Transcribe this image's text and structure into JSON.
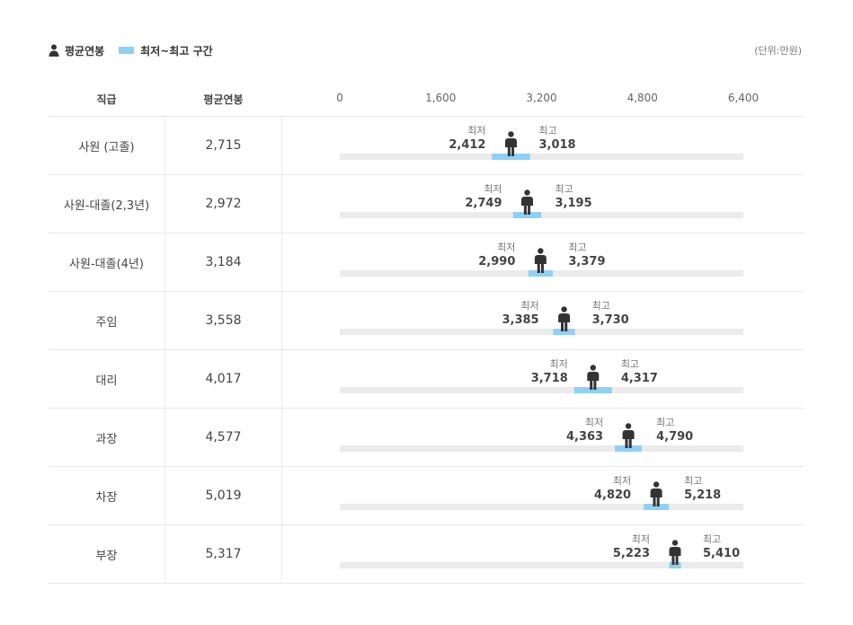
{
  "legend": {
    "avg_label": "평균연봉",
    "range_label": "최저~최고 구간",
    "avg_icon": "person-icon",
    "range_color": "#8fd0f7"
  },
  "unit": "(단위:만원)",
  "columns": {
    "position": "직급",
    "average": "평균연봉"
  },
  "labels": {
    "min": "최저",
    "max": "최고"
  },
  "chart_data": {
    "type": "bar",
    "axis": {
      "min": 0,
      "max": 6400,
      "ticks": [
        "0",
        "1,600",
        "3,200",
        "4,800",
        "6,400"
      ]
    },
    "categories": [
      "사원 (고졸)",
      "사원-대졸(2,3년)",
      "사원-대졸(4년)",
      "주임",
      "대리",
      "과장",
      "차장",
      "부장"
    ],
    "series": [
      {
        "name": "평균연봉",
        "values": [
          2715,
          2972,
          3184,
          3558,
          4017,
          4577,
          5019,
          5317
        ],
        "labels": [
          "2,715",
          "2,972",
          "3,184",
          "3,558",
          "4,017",
          "4,577",
          "5,019",
          "5,317"
        ]
      },
      {
        "name": "최저",
        "values": [
          2412,
          2749,
          2990,
          3385,
          3718,
          4363,
          4820,
          5223
        ],
        "labels": [
          "2,412",
          "2,749",
          "2,990",
          "3,385",
          "3,718",
          "4,363",
          "4,820",
          "5,223"
        ]
      },
      {
        "name": "최고",
        "values": [
          3018,
          3195,
          3379,
          3730,
          4317,
          4790,
          5218,
          5410
        ],
        "labels": [
          "3,018",
          "3,195",
          "3,379",
          "3,730",
          "4,317",
          "4,790",
          "5,218",
          "5,410"
        ]
      }
    ],
    "colors": {
      "range": "#8fd0f7",
      "track": "#ebebeb",
      "person": "#333333"
    }
  }
}
